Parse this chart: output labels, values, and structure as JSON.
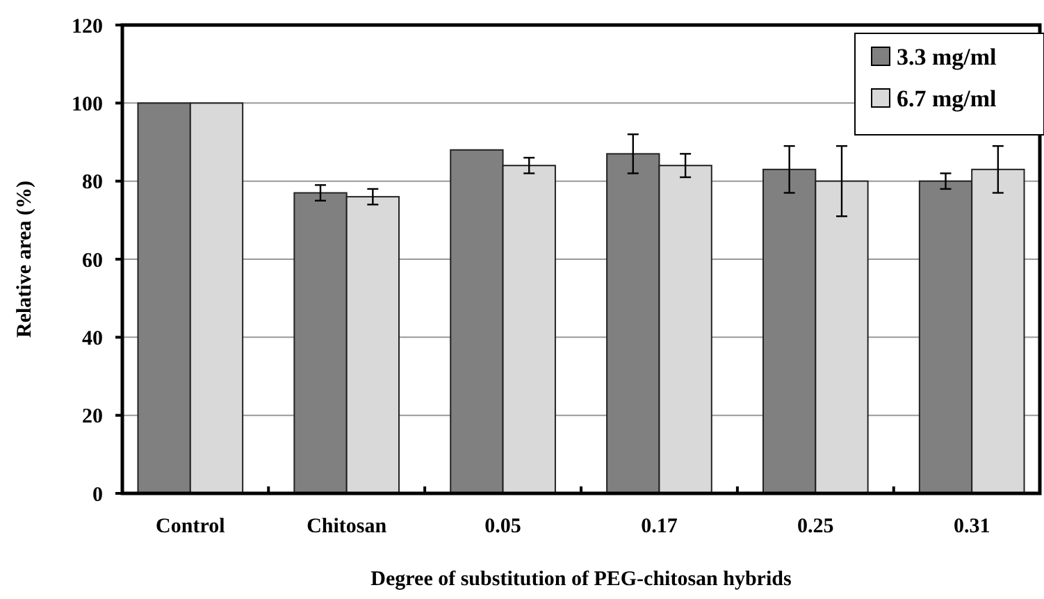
{
  "chart_data": {
    "type": "bar",
    "xlabel": "Degree of substitution of PEG-chitosan hybrids",
    "ylabel": "Relative area (%)",
    "categories": [
      "Control",
      "Chitosan",
      "0.05",
      "0.17",
      "0.25",
      "0.31"
    ],
    "series": [
      {
        "name": "3.3 mg/ml",
        "color": "#808080",
        "values": [
          100,
          77,
          88,
          87,
          83,
          80
        ],
        "errors": [
          null,
          2,
          null,
          5,
          6,
          2
        ]
      },
      {
        "name": "6.7 mg/ml",
        "color": "#d9d9d9",
        "values": [
          100,
          76,
          84,
          84,
          80,
          83
        ],
        "errors": [
          null,
          2,
          2,
          3,
          9,
          6
        ]
      }
    ],
    "ylim": [
      0,
      120
    ],
    "yticks": [
      0,
      20,
      40,
      60,
      80,
      100,
      120
    ],
    "grid": "y",
    "legend": "top right"
  }
}
